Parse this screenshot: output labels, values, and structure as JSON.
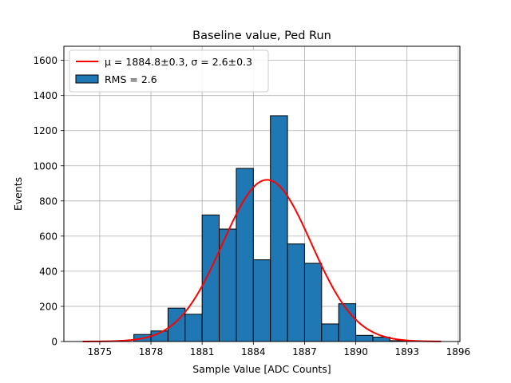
{
  "chart_data": {
    "type": "bar",
    "title": "Baseline value, Ped Run",
    "xlabel": "Sample Value [ADC Counts]",
    "ylabel": "Events",
    "xlim": [
      1872.9,
      1896.1
    ],
    "ylim": [
      0,
      1680
    ],
    "xticks": [
      1875,
      1878,
      1881,
      1884,
      1887,
      1890,
      1893,
      1896
    ],
    "yticks": [
      0,
      200,
      400,
      600,
      800,
      1000,
      1200,
      1400,
      1600
    ],
    "grid": true,
    "legend_placement": "upper-left",
    "bins": {
      "left_edges": [
        1877,
        1878,
        1879,
        1880,
        1881,
        1882,
        1883,
        1884,
        1885,
        1886,
        1887,
        1888,
        1889,
        1890,
        1891,
        1892
      ],
      "width": 1,
      "values": [
        40,
        60,
        190,
        155,
        720,
        640,
        985,
        465,
        1285,
        555,
        445,
        100,
        215,
        35,
        25,
        5
      ]
    },
    "series": [
      {
        "name": "RMS = 2.6",
        "kind": "histogram",
        "color": "#1f77b4",
        "edgecolor": "#000000"
      },
      {
        "name": "μ = 1884.8±0.3, σ = 2.6±0.3",
        "kind": "gaussian-fit",
        "color": "#ff0000",
        "mu": 1884.8,
        "sigma": 2.6,
        "amplitude": 920,
        "x_range": [
          1874,
          1895
        ]
      }
    ]
  }
}
